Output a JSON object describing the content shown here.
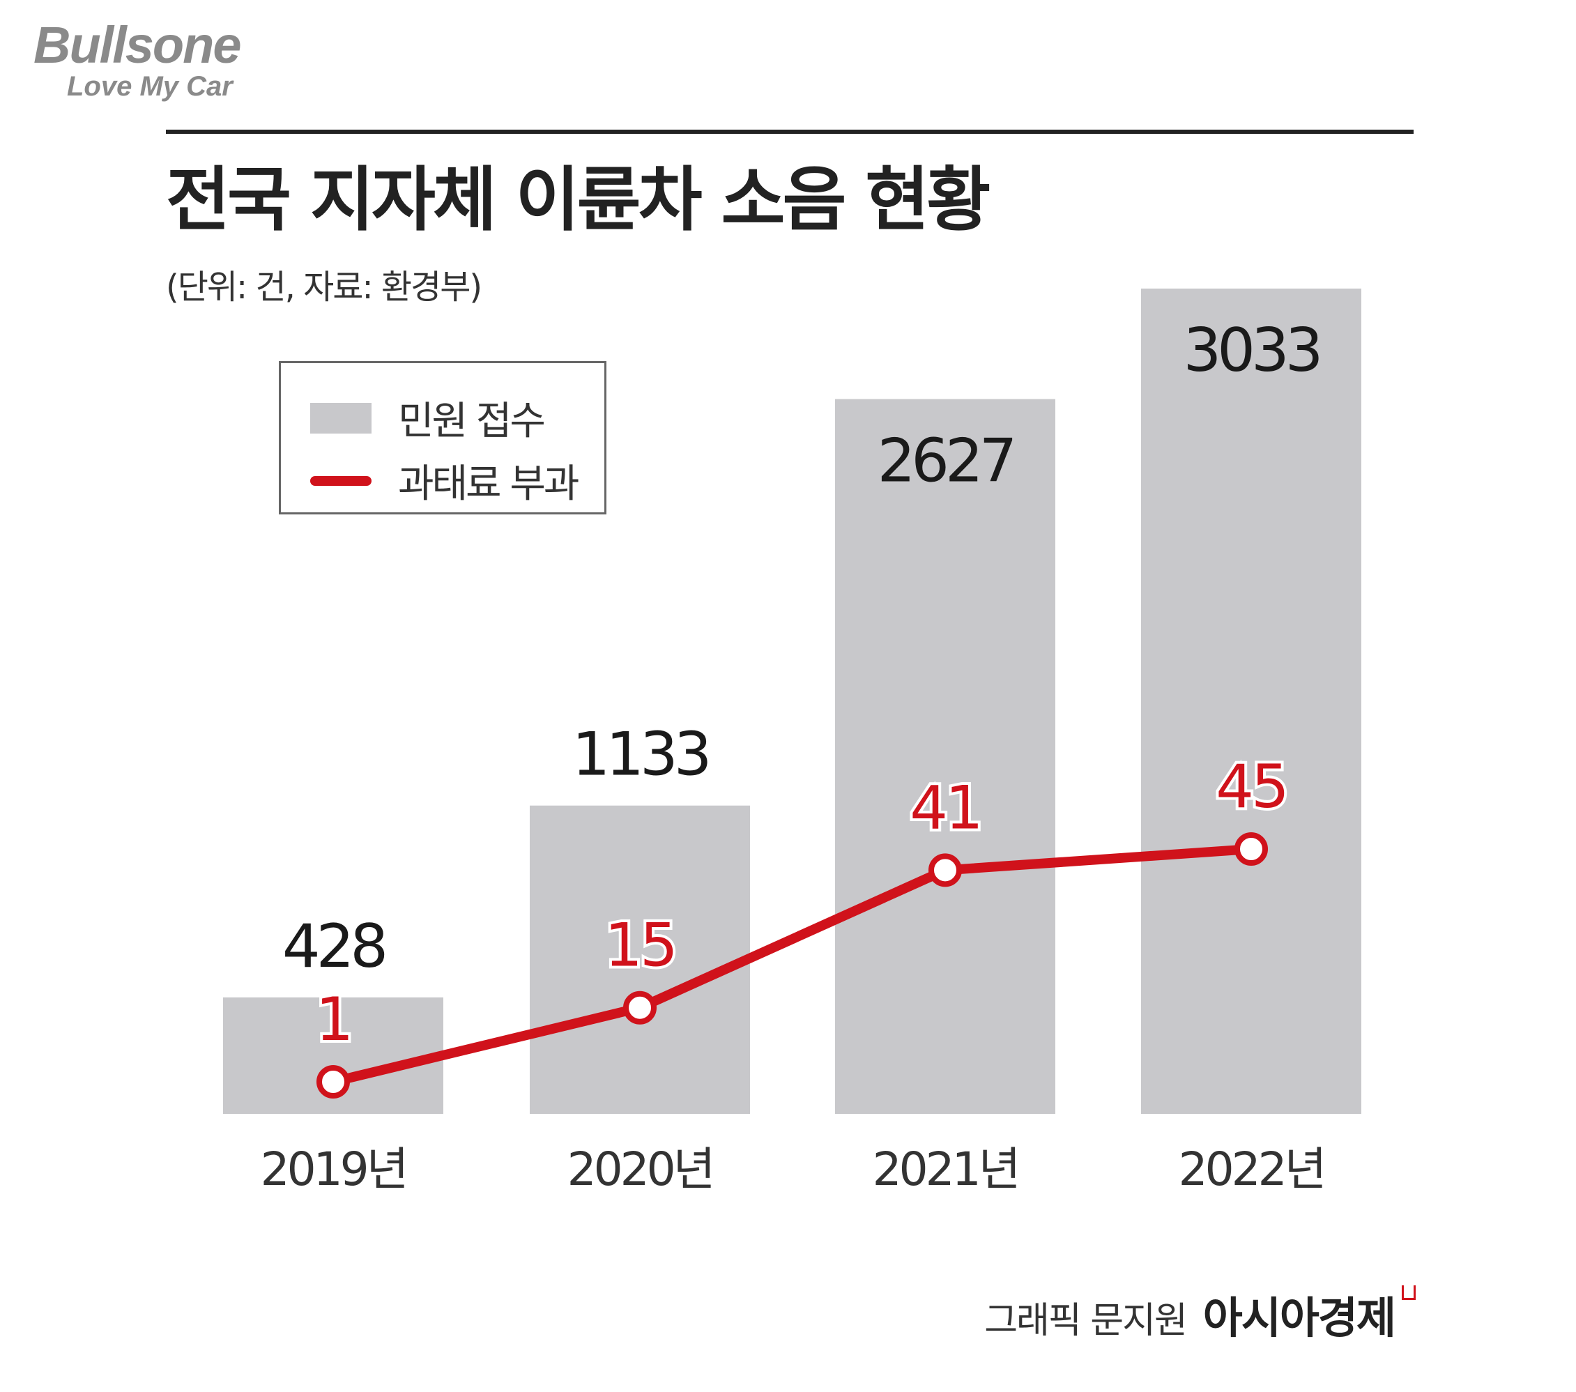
{
  "logo": {
    "name": "Bullsone",
    "tagline": "Love My Car"
  },
  "chart_data": {
    "type": "bar",
    "title": "전국 지자체 이륜차 소음 현황",
    "subtitle": "(단위: 건, 자료: 환경부)",
    "categories": [
      "2019년",
      "2020년",
      "2021년",
      "2022년"
    ],
    "series": [
      {
        "name": "민원 접수",
        "kind": "bar",
        "values": [
          428,
          1133,
          2627,
          3033
        ],
        "color": "#c8c8cb"
      },
      {
        "name": "과태료 부과",
        "kind": "line",
        "values": [
          1,
          15,
          41,
          45
        ],
        "color": "#d0121b"
      }
    ],
    "legend": {
      "position": "top-left"
    },
    "grid": false
  },
  "credit": {
    "author": "그래픽 문지원",
    "brand": "아시아경제"
  }
}
